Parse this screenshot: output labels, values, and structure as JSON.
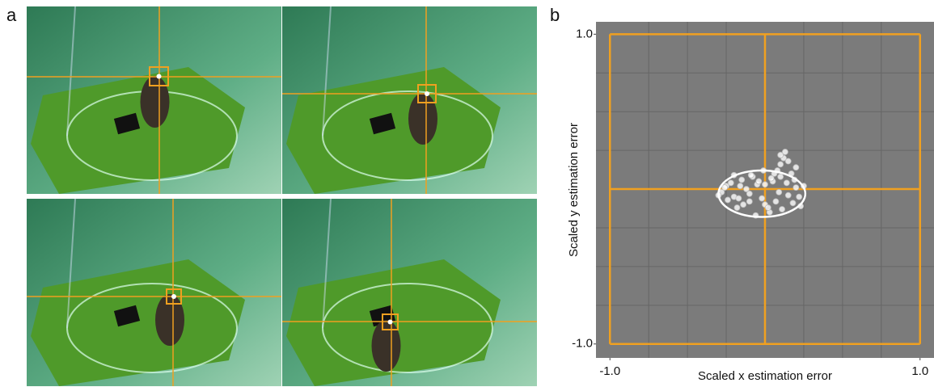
{
  "chart_data": {
    "type": "scatter",
    "panel_labels": [
      "a",
      "b"
    ],
    "xlabel": "Scaled x estimation error",
    "ylabel": "Scaled y estimation error",
    "xlim": [
      -1.09,
      1.09
    ],
    "ylim": [
      -1.09,
      1.08
    ],
    "xticks": [
      {
        "value": -1,
        "label": "-1.0"
      },
      {
        "value": 1,
        "label": "1.0"
      }
    ],
    "yticks": [
      {
        "value": -1,
        "label": "-1.0"
      },
      {
        "value": 1,
        "label": "1.0"
      }
    ],
    "grid": true,
    "grid_values": [
      -0.75,
      -0.5,
      -0.25,
      0.25,
      0.5,
      0.75
    ],
    "reference_lines": [
      -1,
      0,
      1
    ],
    "reference_color": "#f0a020",
    "background": "#7b7b7b",
    "color": "#ffffff",
    "ellipse": {
      "cx": -0.02,
      "cy": -0.03,
      "rx": 0.28,
      "ry": 0.15
    },
    "x": [
      -0.25,
      -0.2,
      -0.15,
      -0.1,
      -0.05,
      0,
      0.05,
      0.1,
      0.15,
      0.2,
      -0.28,
      -0.22,
      -0.18,
      -0.12,
      -0.08,
      -0.02,
      0.03,
      0.08,
      0.12,
      0.18,
      -0.24,
      -0.16,
      -0.1,
      -0.04,
      0.02,
      0.06,
      0.1,
      0.14,
      0.22,
      0.25,
      -0.2,
      -0.14,
      -0.06,
      0,
      0.04,
      0.09,
      0.13,
      0.17,
      -0.3,
      -0.26,
      0.11,
      0.15,
      0.19,
      0.1,
      0.07,
      -0.01,
      -0.09,
      -0.17,
      0.2,
      0.23
    ],
    "y": [
      0.02,
      -0.05,
      0.06,
      -0.08,
      0.03,
      -0.1,
      0.05,
      0.08,
      -0.04,
      0.01,
      -0.02,
      0.04,
      -0.12,
      0,
      0.08,
      -0.06,
      -0.15,
      0.12,
      0.2,
      -0.09,
      -0.07,
      0.02,
      -0.03,
      0.05,
      -0.12,
      0.1,
      0.16,
      0.04,
      -0.05,
      0.02,
      0.09,
      -0.1,
      -0.17,
      0.03,
      0.07,
      -0.02,
      0.24,
      0.1,
      -0.04,
      0.01,
      -0.13,
      0.18,
      0.06,
      0.22,
      -0.08,
      0.12,
      0.09,
      -0.06,
      0.14,
      -0.11
    ]
  }
}
